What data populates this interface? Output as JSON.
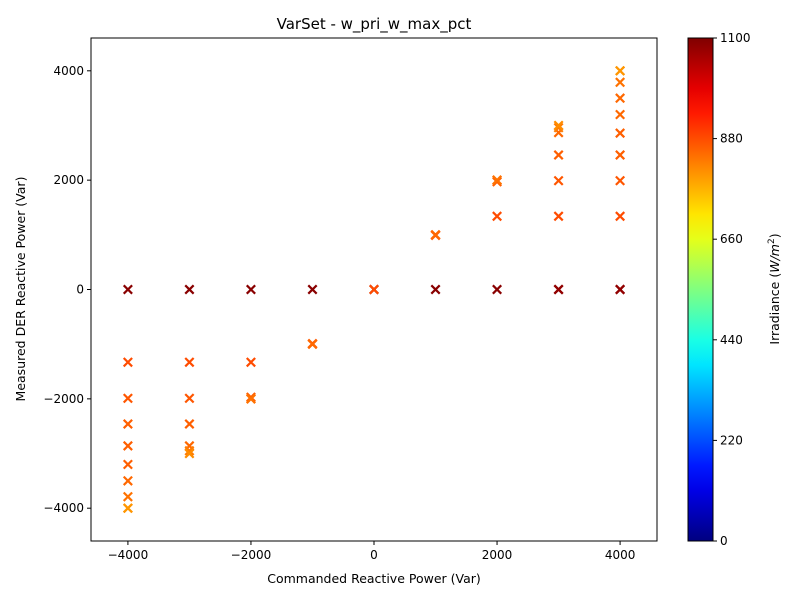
{
  "chart_data": {
    "type": "scatter",
    "title": "VarSet - w_pri_w_max_pct",
    "xlabel": "Commanded Reactive Power (Var)",
    "ylabel": "Measured DER Reactive Power (Var)",
    "xlim": [
      -4600,
      4600
    ],
    "ylim": [
      -4600,
      4600
    ],
    "xticks": [
      -4000,
      -2000,
      0,
      2000,
      4000
    ],
    "yticks": [
      -4000,
      -2000,
      0,
      2000,
      4000
    ],
    "marker": "x",
    "grid": false,
    "colorbar": {
      "label": "Irradiance (W/m²)",
      "label_main": "Irradiance (",
      "label_unit": "W/m",
      "label_sup": "2",
      "label_end": ")",
      "colormap": "jet",
      "range": [
        0,
        1100
      ],
      "ticks": [
        0,
        220,
        440,
        660,
        880,
        1100
      ]
    },
    "points": [
      {
        "x": -4000,
        "y": 0,
        "c": 1090
      },
      {
        "x": -4000,
        "y": -1330,
        "c": 880
      },
      {
        "x": -4000,
        "y": -1990,
        "c": 870
      },
      {
        "x": -4000,
        "y": -2460,
        "c": 860
      },
      {
        "x": -4000,
        "y": -2860,
        "c": 860
      },
      {
        "x": -4000,
        "y": -3200,
        "c": 860
      },
      {
        "x": -4000,
        "y": -3500,
        "c": 850
      },
      {
        "x": -4000,
        "y": -3790,
        "c": 840
      },
      {
        "x": -4000,
        "y": -4000,
        "c": 820
      },
      {
        "x": -4000,
        "y": -4000,
        "c": 800
      },
      {
        "x": -3000,
        "y": 0,
        "c": 1090
      },
      {
        "x": -3000,
        "y": -1330,
        "c": 880
      },
      {
        "x": -3000,
        "y": -1990,
        "c": 870
      },
      {
        "x": -3000,
        "y": -2460,
        "c": 860
      },
      {
        "x": -3000,
        "y": -2860,
        "c": 850
      },
      {
        "x": -3000,
        "y": -2950,
        "c": 830
      },
      {
        "x": -3000,
        "y": -3000,
        "c": 810
      },
      {
        "x": -2000,
        "y": 0,
        "c": 1090
      },
      {
        "x": -2000,
        "y": -1330,
        "c": 880
      },
      {
        "x": -2000,
        "y": -1970,
        "c": 860
      },
      {
        "x": -2000,
        "y": -2000,
        "c": 850
      },
      {
        "x": -2000,
        "y": -2000,
        "c": 840
      },
      {
        "x": -1000,
        "y": 0,
        "c": 1090
      },
      {
        "x": -1000,
        "y": -990,
        "c": 870
      },
      {
        "x": -1000,
        "y": -1000,
        "c": 860
      },
      {
        "x": -1000,
        "y": -1000,
        "c": 850
      },
      {
        "x": 0,
        "y": 0,
        "c": 1090
      },
      {
        "x": 0,
        "y": 0,
        "c": 880
      },
      {
        "x": 1000,
        "y": 0,
        "c": 1090
      },
      {
        "x": 1000,
        "y": 990,
        "c": 870
      },
      {
        "x": 1000,
        "y": 1000,
        "c": 860
      },
      {
        "x": 1000,
        "y": 1000,
        "c": 850
      },
      {
        "x": 2000,
        "y": 0,
        "c": 1090
      },
      {
        "x": 2000,
        "y": 1340,
        "c": 880
      },
      {
        "x": 2000,
        "y": 1970,
        "c": 860
      },
      {
        "x": 2000,
        "y": 2000,
        "c": 850
      },
      {
        "x": 2000,
        "y": 2000,
        "c": 840
      },
      {
        "x": 3000,
        "y": 0,
        "c": 1090
      },
      {
        "x": 3000,
        "y": 0,
        "c": 1080
      },
      {
        "x": 3000,
        "y": 1340,
        "c": 880
      },
      {
        "x": 3000,
        "y": 1990,
        "c": 870
      },
      {
        "x": 3000,
        "y": 2460,
        "c": 860
      },
      {
        "x": 3000,
        "y": 2870,
        "c": 850
      },
      {
        "x": 3000,
        "y": 2960,
        "c": 830
      },
      {
        "x": 3000,
        "y": 3000,
        "c": 810
      },
      {
        "x": 4000,
        "y": 0,
        "c": 1090
      },
      {
        "x": 4000,
        "y": 0,
        "c": 1080
      },
      {
        "x": 4000,
        "y": 1340,
        "c": 880
      },
      {
        "x": 4000,
        "y": 1990,
        "c": 870
      },
      {
        "x": 4000,
        "y": 2460,
        "c": 860
      },
      {
        "x": 4000,
        "y": 2860,
        "c": 860
      },
      {
        "x": 4000,
        "y": 3200,
        "c": 850
      },
      {
        "x": 4000,
        "y": 3500,
        "c": 850
      },
      {
        "x": 4000,
        "y": 3790,
        "c": 840
      },
      {
        "x": 4000,
        "y": 4000,
        "c": 820
      },
      {
        "x": 4000,
        "y": 4000,
        "c": 800
      }
    ]
  }
}
